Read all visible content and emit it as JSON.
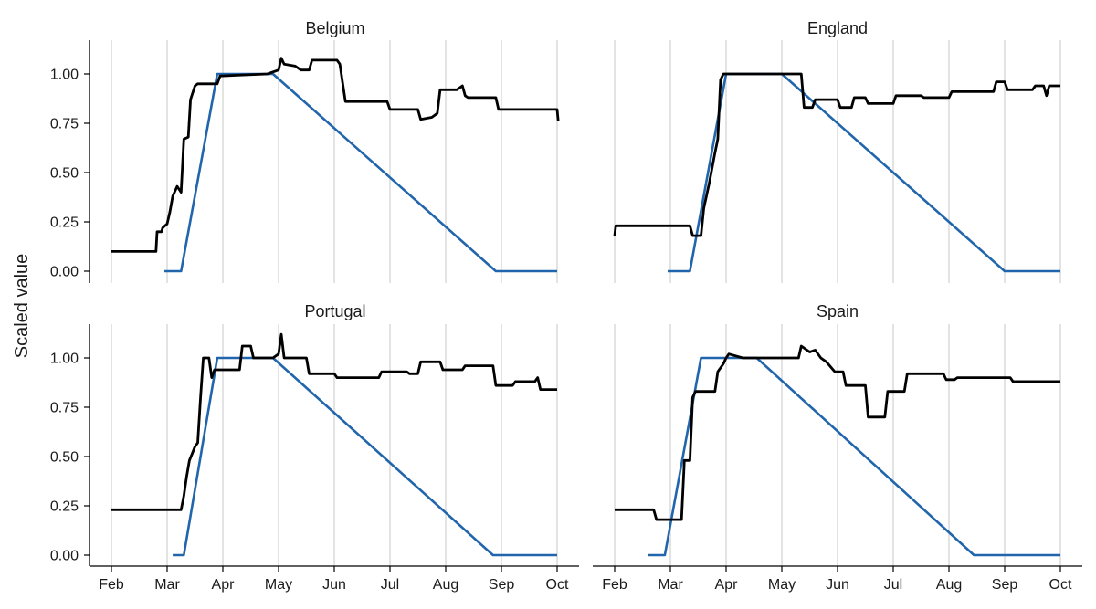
{
  "chart_data": {
    "type": "line",
    "ylabel": "Scaled value",
    "x_ticks": [
      "Feb",
      "Mar",
      "Apr",
      "May",
      "Jun",
      "Jul",
      "Aug",
      "Sep",
      "Oct"
    ],
    "x_tick_months": [
      2,
      3,
      4,
      5,
      6,
      7,
      8,
      9,
      10
    ],
    "xlim_months": [
      1.95,
      10.1
    ],
    "y_ticks": [
      "0.00",
      "0.25",
      "0.50",
      "0.75",
      "1.00"
    ],
    "y_tick_values": [
      0,
      0.25,
      0.5,
      0.75,
      1.0
    ],
    "ylim": [
      -0.05,
      1.15
    ],
    "grid": "vertical lines at month ticks",
    "series_colors": {
      "observed": "#000000",
      "assumed": "#2166ac"
    },
    "panels": [
      {
        "title": "Belgium",
        "observed": [
          [
            2.0,
            0.1
          ],
          [
            2.8,
            0.1
          ],
          [
            2.82,
            0.2
          ],
          [
            2.9,
            0.2
          ],
          [
            2.92,
            0.22
          ],
          [
            3.0,
            0.24
          ],
          [
            3.05,
            0.3
          ],
          [
            3.1,
            0.38
          ],
          [
            3.18,
            0.43
          ],
          [
            3.25,
            0.4
          ],
          [
            3.3,
            0.67
          ],
          [
            3.38,
            0.68
          ],
          [
            3.42,
            0.87
          ],
          [
            3.5,
            0.94
          ],
          [
            3.55,
            0.95
          ],
          [
            3.9,
            0.95
          ],
          [
            3.95,
            0.99
          ],
          [
            4.8,
            1.0
          ],
          [
            5.0,
            1.02
          ],
          [
            5.05,
            1.08
          ],
          [
            5.1,
            1.05
          ],
          [
            5.3,
            1.04
          ],
          [
            5.4,
            1.02
          ],
          [
            5.55,
            1.02
          ],
          [
            5.6,
            1.07
          ],
          [
            6.05,
            1.07
          ],
          [
            6.1,
            1.05
          ],
          [
            6.2,
            0.86
          ],
          [
            6.95,
            0.86
          ],
          [
            7.0,
            0.82
          ],
          [
            7.5,
            0.82
          ],
          [
            7.55,
            0.77
          ],
          [
            7.75,
            0.78
          ],
          [
            7.85,
            0.8
          ],
          [
            7.9,
            0.92
          ],
          [
            8.2,
            0.92
          ],
          [
            8.3,
            0.94
          ],
          [
            8.35,
            0.89
          ],
          [
            8.4,
            0.88
          ],
          [
            8.9,
            0.88
          ],
          [
            8.95,
            0.82
          ],
          [
            10.0,
            0.82
          ],
          [
            10.02,
            0.76
          ]
        ],
        "assumed": [
          [
            2.95,
            0.0
          ],
          [
            3.25,
            0.0
          ],
          [
            3.9,
            1.0
          ],
          [
            4.9,
            1.0
          ],
          [
            8.9,
            0.0
          ],
          [
            10.0,
            0.0
          ]
        ]
      },
      {
        "title": "England",
        "observed": [
          [
            2.0,
            0.18
          ],
          [
            2.02,
            0.23
          ],
          [
            3.35,
            0.23
          ],
          [
            3.4,
            0.18
          ],
          [
            3.55,
            0.18
          ],
          [
            3.6,
            0.32
          ],
          [
            3.7,
            0.45
          ],
          [
            3.8,
            0.6
          ],
          [
            3.85,
            0.67
          ],
          [
            3.9,
            0.97
          ],
          [
            3.95,
            1.0
          ],
          [
            5.35,
            1.0
          ],
          [
            5.4,
            0.83
          ],
          [
            5.55,
            0.83
          ],
          [
            5.6,
            0.87
          ],
          [
            6.0,
            0.87
          ],
          [
            6.05,
            0.83
          ],
          [
            6.25,
            0.83
          ],
          [
            6.3,
            0.88
          ],
          [
            6.5,
            0.88
          ],
          [
            6.55,
            0.85
          ],
          [
            7.0,
            0.85
          ],
          [
            7.05,
            0.89
          ],
          [
            7.5,
            0.89
          ],
          [
            7.55,
            0.88
          ],
          [
            8.0,
            0.88
          ],
          [
            8.05,
            0.91
          ],
          [
            8.8,
            0.91
          ],
          [
            8.85,
            0.96
          ],
          [
            9.0,
            0.96
          ],
          [
            9.05,
            0.92
          ],
          [
            9.5,
            0.92
          ],
          [
            9.55,
            0.94
          ],
          [
            9.7,
            0.94
          ],
          [
            9.75,
            0.89
          ],
          [
            9.8,
            0.94
          ],
          [
            10.0,
            0.94
          ]
        ],
        "assumed": [
          [
            2.95,
            0.0
          ],
          [
            3.35,
            0.0
          ],
          [
            4.0,
            1.0
          ],
          [
            5.0,
            1.0
          ],
          [
            9.0,
            0.0
          ],
          [
            10.0,
            0.0
          ]
        ]
      },
      {
        "title": "Portugal",
        "observed": [
          [
            2.0,
            0.23
          ],
          [
            3.25,
            0.23
          ],
          [
            3.3,
            0.3
          ],
          [
            3.35,
            0.4
          ],
          [
            3.4,
            0.48
          ],
          [
            3.5,
            0.55
          ],
          [
            3.55,
            0.57
          ],
          [
            3.6,
            0.8
          ],
          [
            3.65,
            1.0
          ],
          [
            3.75,
            1.0
          ],
          [
            3.8,
            0.9
          ],
          [
            3.85,
            0.94
          ],
          [
            4.3,
            0.94
          ],
          [
            4.35,
            1.06
          ],
          [
            4.5,
            1.06
          ],
          [
            4.55,
            1.0
          ],
          [
            4.9,
            1.0
          ],
          [
            5.0,
            1.02
          ],
          [
            5.05,
            1.12
          ],
          [
            5.1,
            1.0
          ],
          [
            5.5,
            1.0
          ],
          [
            5.55,
            0.92
          ],
          [
            6.0,
            0.92
          ],
          [
            6.05,
            0.9
          ],
          [
            6.8,
            0.9
          ],
          [
            6.85,
            0.93
          ],
          [
            7.3,
            0.93
          ],
          [
            7.35,
            0.92
          ],
          [
            7.5,
            0.92
          ],
          [
            7.55,
            0.98
          ],
          [
            7.9,
            0.98
          ],
          [
            7.95,
            0.94
          ],
          [
            8.3,
            0.94
          ],
          [
            8.35,
            0.96
          ],
          [
            8.85,
            0.96
          ],
          [
            8.9,
            0.86
          ],
          [
            9.2,
            0.86
          ],
          [
            9.25,
            0.88
          ],
          [
            9.6,
            0.88
          ],
          [
            9.65,
            0.9
          ],
          [
            9.7,
            0.84
          ],
          [
            10.0,
            0.84
          ]
        ],
        "assumed": [
          [
            3.1,
            0.0
          ],
          [
            3.3,
            0.0
          ],
          [
            3.9,
            1.0
          ],
          [
            4.9,
            1.0
          ],
          [
            8.85,
            0.0
          ],
          [
            10.0,
            0.0
          ]
        ]
      },
      {
        "title": "Spain",
        "observed": [
          [
            2.0,
            0.23
          ],
          [
            2.7,
            0.23
          ],
          [
            2.75,
            0.18
          ],
          [
            3.2,
            0.18
          ],
          [
            3.25,
            0.48
          ],
          [
            3.35,
            0.48
          ],
          [
            3.4,
            0.8
          ],
          [
            3.45,
            0.83
          ],
          [
            3.8,
            0.83
          ],
          [
            3.85,
            0.93
          ],
          [
            3.95,
            0.97
          ],
          [
            4.0,
            1.0
          ],
          [
            4.05,
            1.02
          ],
          [
            4.3,
            1.0
          ],
          [
            5.3,
            1.0
          ],
          [
            5.35,
            1.06
          ],
          [
            5.5,
            1.03
          ],
          [
            5.6,
            1.04
          ],
          [
            5.7,
            1.0
          ],
          [
            5.8,
            0.98
          ],
          [
            5.95,
            0.93
          ],
          [
            6.1,
            0.93
          ],
          [
            6.15,
            0.86
          ],
          [
            6.5,
            0.86
          ],
          [
            6.55,
            0.7
          ],
          [
            6.85,
            0.7
          ],
          [
            6.9,
            0.83
          ],
          [
            7.2,
            0.83
          ],
          [
            7.25,
            0.92
          ],
          [
            7.9,
            0.92
          ],
          [
            7.95,
            0.89
          ],
          [
            8.1,
            0.89
          ],
          [
            8.15,
            0.9
          ],
          [
            9.1,
            0.9
          ],
          [
            9.15,
            0.88
          ],
          [
            10.0,
            0.88
          ]
        ],
        "assumed": [
          [
            2.6,
            0.0
          ],
          [
            2.9,
            0.0
          ],
          [
            3.55,
            1.0
          ],
          [
            4.55,
            1.0
          ],
          [
            8.45,
            0.0
          ],
          [
            10.0,
            0.0
          ]
        ]
      }
    ]
  }
}
